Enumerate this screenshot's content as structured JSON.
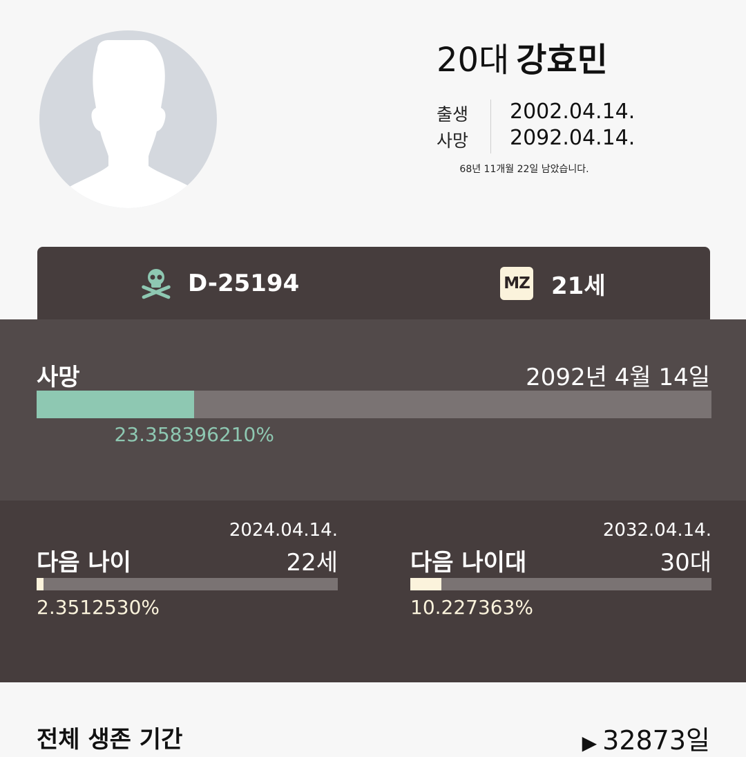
{
  "profile": {
    "age_group": "20대",
    "name": "강효민",
    "birth_label": "출생",
    "birth_date": "2002.04.14.",
    "death_label": "사망",
    "death_date": "2092.04.14.",
    "remaining_text": "68년 11개월 22일 남았습니다."
  },
  "dday": {
    "countdown": "D-25194",
    "countdown_icon": "skull-crossbones-icon",
    "age_badge": "MZ",
    "age": "21세"
  },
  "death": {
    "label": "사망",
    "date": "2092년 4월 14일",
    "percent_text": "23.358396210%",
    "progress": 0.23358396
  },
  "next_age": {
    "date": "2024.04.14.",
    "title": "다음 나이",
    "value": "22세",
    "percent_text": "2.3512530%",
    "progress": 0.02351253
  },
  "next_decade": {
    "date": "2032.04.14.",
    "title": "다음 나이대",
    "value": "30대",
    "percent_text": "10.227363%",
    "progress": 0.10227363
  },
  "total": {
    "label": "전체 생존 기간",
    "arrow": "▶",
    "value": "32873일"
  },
  "colors": {
    "dark_card": "#463d3d",
    "mid_section": "#524a4a",
    "track": "#7a7373",
    "mint": "#8ec8b2",
    "cream": "#fbf3dc"
  }
}
